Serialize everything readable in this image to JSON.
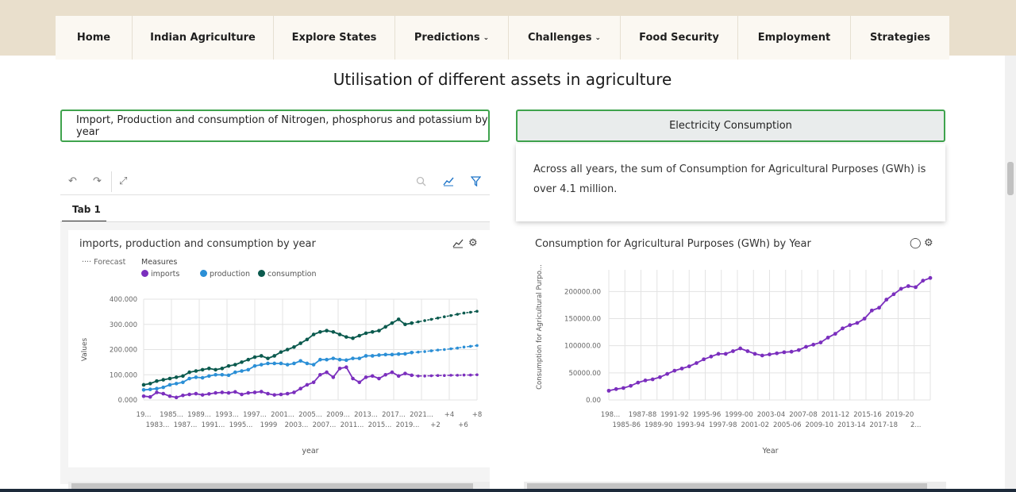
{
  "nav": [
    {
      "label": "Home",
      "active": true,
      "dropdown": false
    },
    {
      "label": "Indian Agriculture",
      "active": false,
      "dropdown": false
    },
    {
      "label": "Explore States",
      "active": false,
      "dropdown": false
    },
    {
      "label": "Predictions",
      "active": false,
      "dropdown": true
    },
    {
      "label": "Challenges",
      "active": false,
      "dropdown": true
    },
    {
      "label": "Food Security",
      "active": false,
      "dropdown": false
    },
    {
      "label": "Employment",
      "active": false,
      "dropdown": false
    },
    {
      "label": "Strategies",
      "active": false,
      "dropdown": false
    }
  ],
  "page_title": "Utilisation of different assets in agriculture",
  "tabs": {
    "left_label": "Import, Production and consumption of Nitrogen, phosphorus and potassium by year",
    "right_label": "Electricity Consumption"
  },
  "info_card": {
    "text": "Across all years, the sum of Consumption for Agricultural Purposes (GWh) is over 4.1 million."
  },
  "toolbar": {
    "icons": [
      "undo-icon",
      "redo-icon",
      "expand-icon",
      "zoom-icon",
      "line-chart-icon",
      "filter-icon"
    ],
    "tab_label": "Tab 1"
  },
  "colors": {
    "imports": "#7b2fbe",
    "production": "#2b8fd6",
    "consumption": "#0b5a4e",
    "electricity": "#7b2fbe",
    "active_nav": "#d8b632",
    "tab_border": "#3fa34d"
  },
  "chart_data": [
    {
      "type": "line",
      "title": "imports, production and consumption by year",
      "legend_title": "Measures",
      "forecast_label": "Forecast",
      "xlabel": "year",
      "ylabel": "Values",
      "ylim": [
        0,
        400000
      ],
      "yticks": [
        "0.000",
        "100.000",
        "200.000",
        "300.000",
        "400.000"
      ],
      "x_tick_labels_top": [
        "19...",
        "1985...",
        "1989...",
        "1993...",
        "1997...",
        "2001...",
        "2005...",
        "2009...",
        "2013...",
        "2017...",
        "2021...",
        "+4",
        "+8"
      ],
      "x_tick_labels_bottom": [
        "1983...",
        "1987...",
        "1991...",
        "1995...",
        "1999",
        "2003...",
        "2007...",
        "2011...",
        "2015...",
        "2019...",
        "+2",
        "+6"
      ],
      "x": [
        "1981",
        "1982",
        "1983",
        "1984",
        "1985",
        "1986",
        "1987",
        "1988",
        "1989",
        "1990",
        "1991",
        "1992",
        "1993",
        "1994",
        "1995",
        "1996",
        "1997",
        "1998",
        "1999",
        "2000",
        "2001",
        "2002",
        "2003",
        "2004",
        "2005",
        "2006",
        "2007",
        "2008",
        "2009",
        "2010",
        "2011",
        "2012",
        "2013",
        "2014",
        "2015",
        "2016",
        "2017",
        "2018",
        "2019",
        "2020",
        "2021",
        "2022",
        "+1",
        "+2",
        "+3",
        "+4",
        "+5",
        "+6",
        "+7",
        "+8",
        "+9",
        "+10"
      ],
      "forecast_start_index": 42,
      "series": [
        {
          "name": "imports",
          "values": [
            15000,
            12000,
            30000,
            25000,
            15000,
            10000,
            18000,
            22000,
            25000,
            20000,
            24000,
            28000,
            30000,
            28000,
            32000,
            22000,
            28000,
            30000,
            33000,
            25000,
            20000,
            22000,
            25000,
            30000,
            45000,
            60000,
            70000,
            100000,
            110000,
            90000,
            125000,
            130000,
            85000,
            70000,
            90000,
            95000,
            85000,
            100000,
            110000,
            95000,
            105000,
            98000,
            95000,
            95000,
            96000,
            97000,
            97000,
            98000,
            98000,
            99000,
            99000,
            100000
          ]
        },
        {
          "name": "production",
          "values": [
            40000,
            42000,
            45000,
            50000,
            60000,
            65000,
            70000,
            85000,
            90000,
            88000,
            95000,
            100000,
            100000,
            98000,
            110000,
            115000,
            120000,
            135000,
            140000,
            145000,
            145000,
            145000,
            140000,
            145000,
            155000,
            145000,
            140000,
            160000,
            160000,
            165000,
            160000,
            158000,
            165000,
            165000,
            175000,
            175000,
            178000,
            180000,
            180000,
            182000,
            183000,
            188000,
            190000,
            192000,
            195000,
            198000,
            200000,
            203000,
            206000,
            210000,
            213000,
            216000
          ]
        },
        {
          "name": "consumption",
          "values": [
            60000,
            65000,
            75000,
            80000,
            85000,
            90000,
            95000,
            110000,
            115000,
            120000,
            125000,
            120000,
            125000,
            135000,
            140000,
            150000,
            160000,
            170000,
            175000,
            165000,
            175000,
            190000,
            200000,
            210000,
            225000,
            240000,
            260000,
            270000,
            275000,
            270000,
            260000,
            250000,
            245000,
            255000,
            265000,
            270000,
            275000,
            290000,
            305000,
            320000,
            300000,
            305000,
            310000,
            315000,
            320000,
            325000,
            330000,
            335000,
            340000,
            345000,
            348000,
            352000
          ]
        }
      ]
    },
    {
      "type": "line",
      "title": "Consumption for Agricultural Purposes (GWh) by Year",
      "xlabel": "Year",
      "ylabel": "Consumption for Agricultural Purpo...",
      "ylim": [
        0,
        240000
      ],
      "yticks": [
        "0.00",
        "50000.00",
        "100000.00",
        "150000.00",
        "200000.00"
      ],
      "x_tick_labels_top": [
        "198...",
        "1987-88",
        "1991-92",
        "1995-96",
        "1999-00",
        "2003-04",
        "2007-08",
        "2011-12",
        "2015-16",
        "2019-20"
      ],
      "x_tick_labels_bottom": [
        "1985-86",
        "1989-90",
        "1993-94",
        "1997-98",
        "2001-02",
        "2005-06",
        "2009-10",
        "2013-14",
        "2017-18",
        "2..."
      ],
      "series": [
        {
          "name": "Consumption for Agricultural Purposes (GWh)",
          "values": [
            17000,
            20000,
            22000,
            26000,
            32000,
            36000,
            38000,
            42000,
            48000,
            54000,
            58000,
            62000,
            68000,
            75000,
            80000,
            85000,
            85000,
            90000,
            95000,
            90000,
            85000,
            82000,
            84000,
            86000,
            88000,
            89000,
            92000,
            98000,
            102000,
            106000,
            115000,
            122000,
            132000,
            138000,
            142000,
            150000,
            165000,
            170000,
            185000,
            195000,
            205000,
            210000,
            208000,
            220000,
            225000
          ]
        }
      ]
    }
  ]
}
